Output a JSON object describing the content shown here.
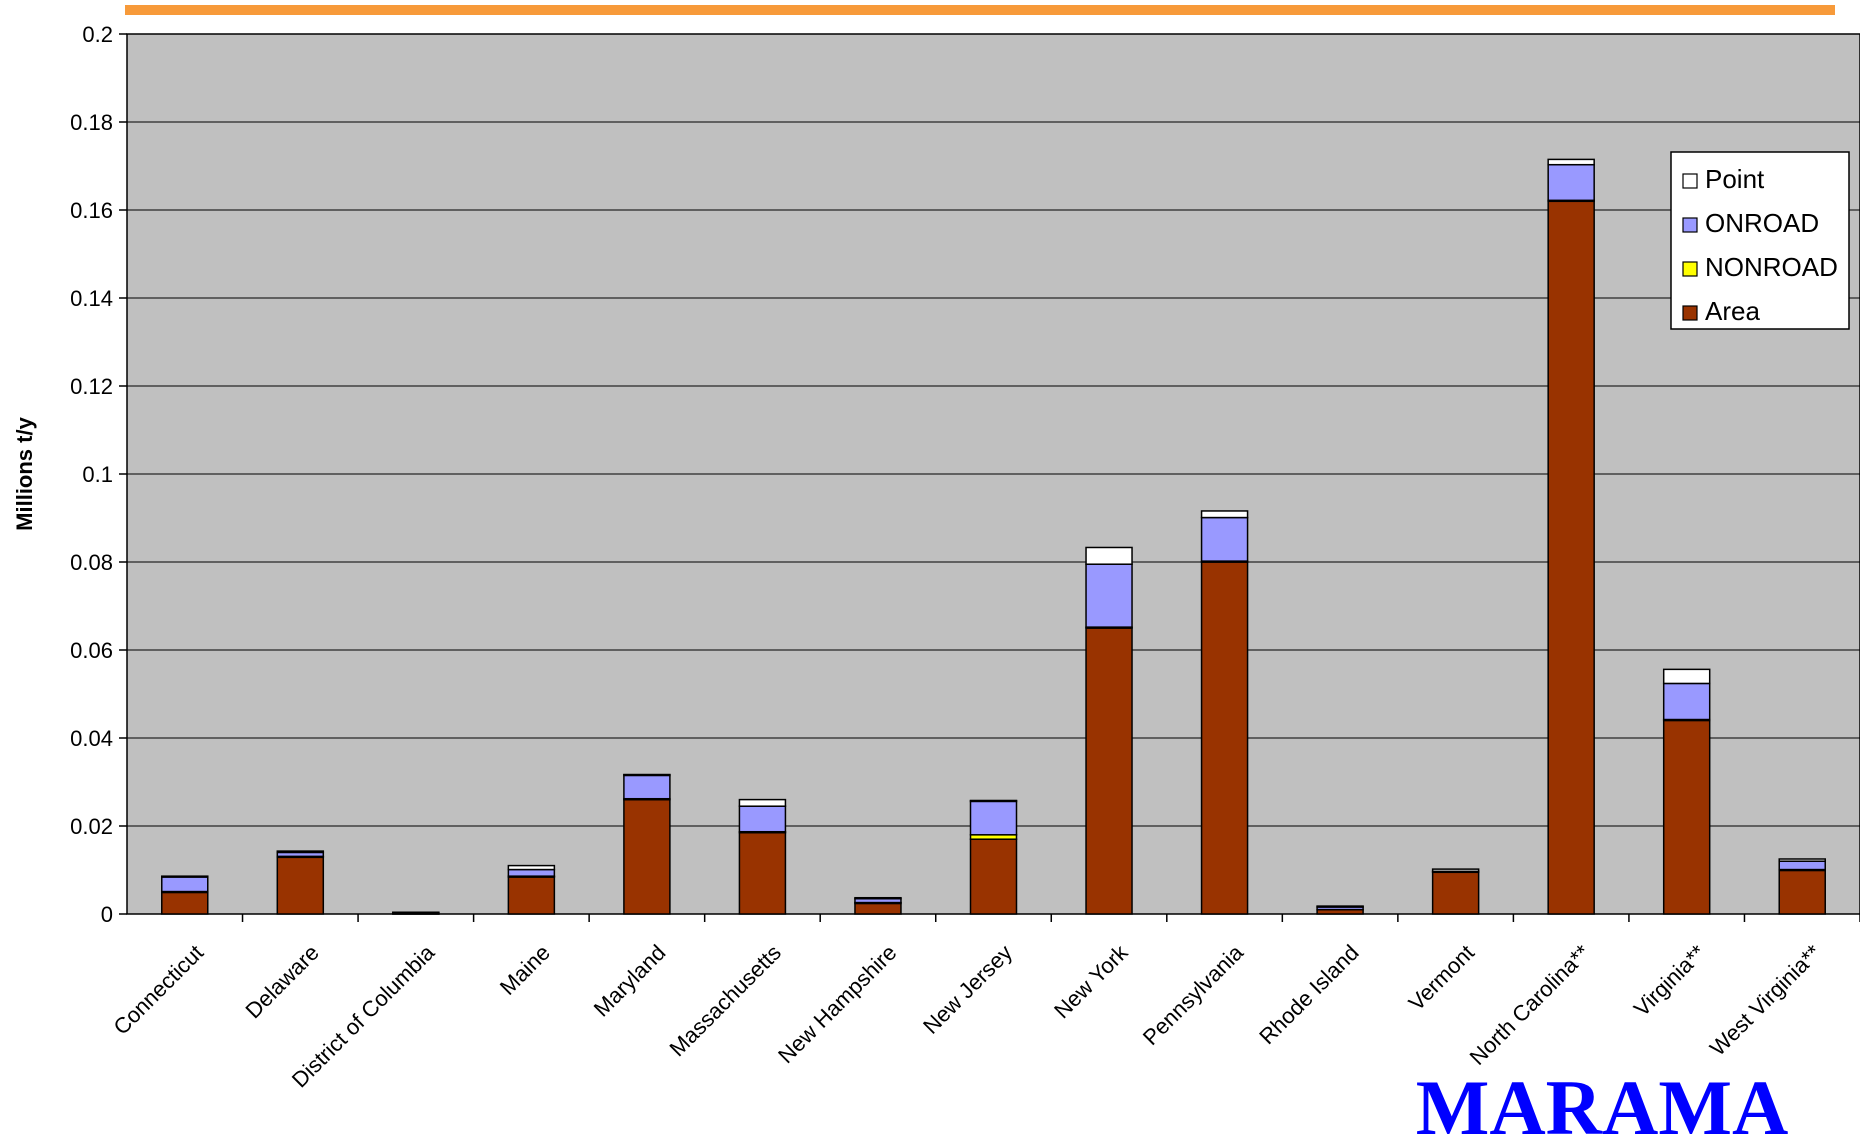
{
  "chart_data": {
    "type": "bar",
    "stacked": true,
    "title": "",
    "xlabel": "",
    "ylabel": "Millions t/y",
    "ylim": [
      0,
      0.2
    ],
    "yticks": [
      "0",
      "0.02",
      "0.04",
      "0.06",
      "0.08",
      "0.1",
      "0.12",
      "0.14",
      "0.16",
      "0.18",
      "0.2"
    ],
    "grid": true,
    "legend_position": "top-right",
    "categories": [
      "Connecticut",
      "Delaware",
      "District of Columbia",
      "Maine",
      "Maryland",
      "Massachusetts",
      "New Hampshire",
      "New Jersey",
      "New York",
      "Pennsylvania",
      "Rhode Island",
      "Vermont",
      "North Carolina**",
      "Virginia**",
      "West Virginia**"
    ],
    "series": [
      {
        "name": "Area",
        "color": "#993300",
        "values": [
          0.005,
          0.013,
          0.0002,
          0.0085,
          0.026,
          0.0185,
          0.0025,
          0.017,
          0.065,
          0.08,
          0.001,
          0.0095,
          0.162,
          0.044,
          0.01
        ]
      },
      {
        "name": "NONROAD",
        "color": "#ffff00",
        "values": [
          0.0001,
          0.0001,
          0.0,
          0.0001,
          0.0002,
          0.0002,
          0.0001,
          0.001,
          0.0002,
          0.0002,
          0.0,
          0.0,
          0.0002,
          0.0002,
          0.0001
        ]
      },
      {
        "name": "ONROAD",
        "color": "#9999ff",
        "values": [
          0.0034,
          0.0009,
          0.0001,
          0.0015,
          0.0054,
          0.0058,
          0.0009,
          0.0077,
          0.0143,
          0.0099,
          0.0006,
          0.0002,
          0.0081,
          0.0082,
          0.0019
        ]
      },
      {
        "name": "Point",
        "color": "#ffffff",
        "values": [
          0.0001,
          0.0003,
          0.0001,
          0.0009,
          0.0001,
          0.0015,
          0.0002,
          0.0001,
          0.0038,
          0.0015,
          0.0002,
          0.0005,
          0.0012,
          0.0032,
          0.0005
        ]
      }
    ],
    "legend_order": [
      "Point",
      "ONROAD",
      "NONROAD",
      "Area"
    ]
  },
  "colors": {
    "plot_background": "#c0c0c0",
    "top_rule": "#f79a3a",
    "logo": "#0000ff"
  },
  "logo_text": "MARAMA"
}
